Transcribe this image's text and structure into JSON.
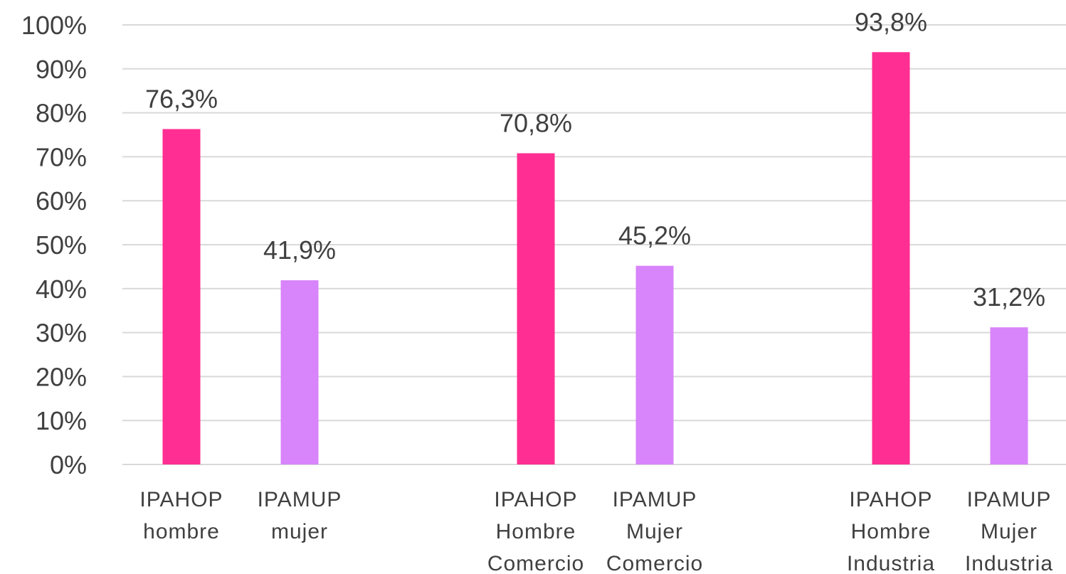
{
  "chart_data": {
    "type": "bar",
    "title": "",
    "xlabel": "",
    "ylabel": "",
    "ylim": [
      0,
      100
    ],
    "y_unit": "%",
    "y_ticks": [
      "0%",
      "10%",
      "20%",
      "30%",
      "40%",
      "50%",
      "60%",
      "70%",
      "80%",
      "90%",
      "100%"
    ],
    "grid": true,
    "legend": "none",
    "categories": [
      [
        "IPAHOP",
        "hombre"
      ],
      [
        "IPAMUP",
        "mujer"
      ],
      [
        "IPAHOP",
        "Hombre",
        "Comercio"
      ],
      [
        "IPAMUP",
        "Mujer",
        "Comercio"
      ],
      [
        "IPAHOP",
        "Hombre",
        "Industria"
      ],
      [
        "IPAMUP",
        "Mujer",
        "Industria"
      ]
    ],
    "values": [
      76.3,
      41.9,
      70.8,
      45.2,
      93.8,
      31.2
    ],
    "data_labels": [
      "76,3%",
      "41,9%",
      "70,8%",
      "45,2%",
      "93,8%",
      "31,2%"
    ],
    "bar_colors": [
      "#FF2E92",
      "#D884FB",
      "#FF2E92",
      "#D884FB",
      "#FF2E92",
      "#D884FB"
    ],
    "colors": {
      "gridline": "#d9d9d9",
      "text": "#404040"
    }
  }
}
